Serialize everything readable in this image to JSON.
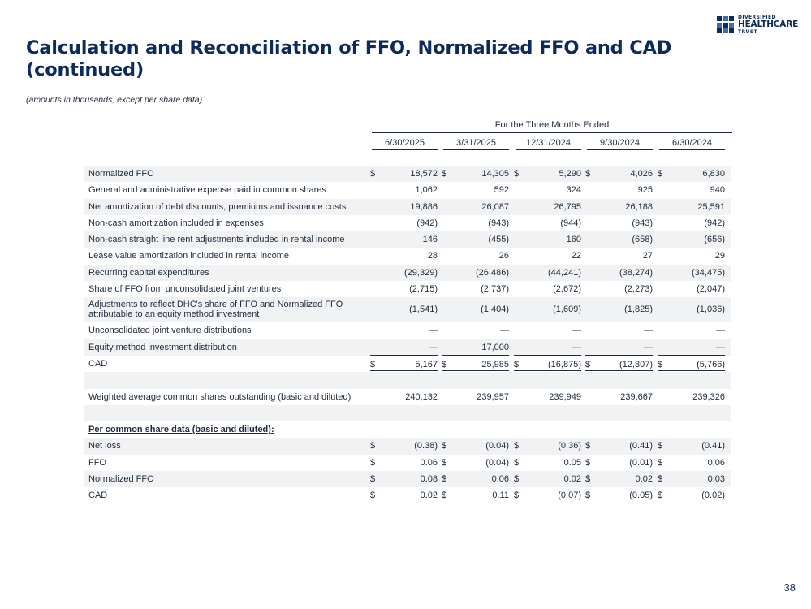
{
  "title": "Calculation and Reconciliation of FFO, Normalized FFO and CAD (continued)",
  "subtitle": "(amounts in thousands, except per share data)",
  "logo": {
    "line1": "DIVERSIFIED",
    "line2": "HEALTHCARE",
    "line3": "TRUST"
  },
  "table": {
    "group_header": "For the Three Months Ended",
    "periods": [
      "6/30/2025",
      "3/31/2025",
      "12/31/2024",
      "9/30/2024",
      "6/30/2024"
    ],
    "rows": [
      {
        "label": "Normalized FFO",
        "dollar": true,
        "values": [
          "18,572",
          "14,305",
          "5,290",
          "4,026",
          "6,830"
        ]
      },
      {
        "label": "General and administrative expense paid in common shares",
        "values": [
          "1,062",
          "592",
          "324",
          "925",
          "940"
        ]
      },
      {
        "label": "Net amortization of debt discounts, premiums and issuance costs",
        "values": [
          "19,886",
          "26,087",
          "26,795",
          "26,188",
          "25,591"
        ]
      },
      {
        "label": "Non-cash amortization included in expenses",
        "values": [
          "(942)",
          "(943)",
          "(944)",
          "(943)",
          "(942)"
        ]
      },
      {
        "label": "Non-cash straight line rent adjustments included in rental income",
        "values": [
          "146",
          "(455)",
          "160",
          "(658)",
          "(656)"
        ]
      },
      {
        "label": "Lease value amortization included in rental income",
        "values": [
          "28",
          "26",
          "22",
          "27",
          "29"
        ]
      },
      {
        "label": "Recurring capital expenditures",
        "values": [
          "(29,329)",
          "(26,486)",
          "(44,241)",
          "(38,274)",
          "(34,475)"
        ]
      },
      {
        "label": "Share of FFO from unconsolidated joint ventures",
        "values": [
          "(2,715)",
          "(2,737)",
          "(2,672)",
          "(2,273)",
          "(2,047)"
        ]
      },
      {
        "label": "Adjustments to reflect DHC's share of FFO and Normalized FFO",
        "label2": "attributable to an equity method investment",
        "values": [
          "(1,541)",
          "(1,404)",
          "(1,609)",
          "(1,825)",
          "(1,036)"
        ]
      },
      {
        "label": "Unconsolidated joint venture distributions",
        "values": [
          "—",
          "—",
          "—",
          "—",
          "—"
        ]
      },
      {
        "label": "Equity method investment distribution",
        "values": [
          "—",
          "17,000",
          "—",
          "—",
          "—"
        ]
      },
      {
        "label": "CAD",
        "dollar": true,
        "total": true,
        "values": [
          "5,167",
          "25,985",
          "(16,875)",
          "(12,807)",
          "(5,766)"
        ]
      },
      {
        "label": "Weighted average common shares outstanding (basic and diluted)",
        "values": [
          "240,132",
          "239,957",
          "239,949",
          "239,667",
          "239,326"
        ]
      },
      {
        "label": "Per common share data (basic and diluted):",
        "section": true
      },
      {
        "label": "Net loss",
        "dollar": true,
        "values": [
          "(0.38)",
          "(0.04)",
          "(0.36)",
          "(0.41)",
          "(0.41)"
        ]
      },
      {
        "label": "FFO",
        "dollar": true,
        "values": [
          "0.06",
          "(0.04)",
          "0.05",
          "(0.01)",
          "0.06"
        ]
      },
      {
        "label": "Normalized FFO",
        "dollar": true,
        "values": [
          "0.08",
          "0.06",
          "0.02",
          "0.02",
          "0.03"
        ]
      },
      {
        "label": "CAD",
        "dollar": true,
        "values": [
          "0.02",
          "0.11",
          "(0.07)",
          "(0.05)",
          "(0.02)"
        ]
      }
    ],
    "currency_symbol": "$"
  },
  "page_number": "38"
}
